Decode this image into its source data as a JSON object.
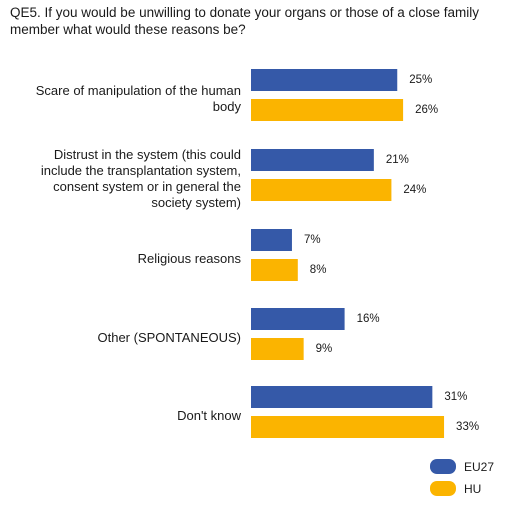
{
  "chart_data": {
    "type": "bar",
    "orientation": "horizontal",
    "title": "QE5. If you would be unwilling to donate your organs or those of a close family member what would these reasons be?",
    "categories": [
      "Scare of manipulation of the human body",
      "Distrust in the system (this could include the transplantation system, consent system or in general the society system)",
      "Religious reasons",
      "Other (SPONTANEOUS)",
      "Don't know"
    ],
    "category_lines": [
      [
        "Scare of manipulation of the human",
        "body"
      ],
      [
        "Distrust in the system (this could",
        "include the transplantation system,",
        "consent system or in general the",
        "society system)"
      ],
      [
        "Religious reasons"
      ],
      [
        "Other (SPONTANEOUS)"
      ],
      [
        "Don't know"
      ]
    ],
    "series": [
      {
        "name": "EU27",
        "color": "#3559a8",
        "values": [
          25,
          21,
          7,
          16,
          31
        ]
      },
      {
        "name": "HU",
        "color": "#fbb400",
        "values": [
          26,
          24,
          8,
          9,
          33
        ]
      }
    ],
    "value_suffix": "%",
    "xlim": [
      0,
      40
    ],
    "grid": false,
    "legend_position": "bottom-right"
  }
}
